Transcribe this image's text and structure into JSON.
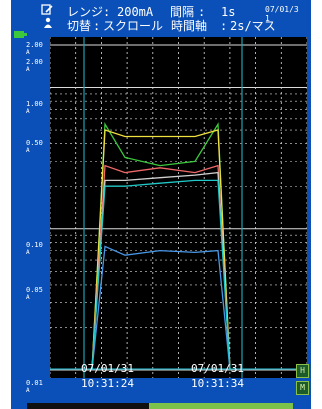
{
  "header": {
    "range_label": "レンジ",
    "range_value": "200mA",
    "interval_label": "間隔",
    "interval_value": "1s",
    "date_top": "07/01/31",
    "mode_label": "切替",
    "mode_value": "スクロール",
    "timeaxis_label": "時間軸",
    "timeaxis_value": "2s/マス",
    "colon": ":"
  },
  "icons": [
    "edit-icon",
    "person-icon",
    "battery-icon"
  ],
  "y_axis": {
    "ticks": [
      {
        "v": "2.00",
        "u": "A"
      },
      {
        "v": "1.00",
        "u": "A"
      },
      {
        "v": "0.50",
        "u": "A"
      },
      {
        "v": "0.10",
        "u": "A"
      },
      {
        "v": "0.05",
        "u": "A"
      },
      {
        "v": "0.01",
        "u": "A"
      }
    ],
    "secondary_top": {
      "v": "2.00",
      "u": "A"
    }
  },
  "timestamps": {
    "left_date": "07/01/31",
    "left_time": "10:31:24",
    "right_date": "07/01/31",
    "right_time": "10:31:34"
  },
  "markers": {
    "top": "H",
    "bottom": "M"
  },
  "colors": {
    "screen_bg": "#0a50b8",
    "plot_bg": "#000000",
    "grid": "#dcdcdc",
    "cursor": "#1fa0b4",
    "series": [
      "#3cc83c",
      "#f0e040",
      "#f06868",
      "#d0d0d0",
      "#4898e8",
      "#20c8c8"
    ]
  },
  "chart_data": {
    "type": "line",
    "yscale": "log",
    "ylim": [
      0.01,
      2.0
    ],
    "series": [
      {
        "values": [
          0.01,
          0.55,
          0.32,
          0.28,
          0.3,
          0.55,
          0.01
        ]
      },
      {
        "values": [
          0.01,
          0.5,
          0.45,
          0.45,
          0.45,
          0.5,
          0.01
        ]
      },
      {
        "values": [
          0.01,
          0.28,
          0.25,
          0.27,
          0.25,
          0.28,
          0.01
        ]
      },
      {
        "values": [
          0.01,
          0.22,
          0.22,
          0.23,
          0.24,
          0.25,
          0.01
        ]
      },
      {
        "values": [
          0.01,
          0.075,
          0.065,
          0.07,
          0.068,
          0.07,
          0.01
        ]
      },
      {
        "values": [
          0.01,
          0.2,
          0.2,
          0.21,
          0.22,
          0.22,
          0.01
        ]
      }
    ]
  }
}
